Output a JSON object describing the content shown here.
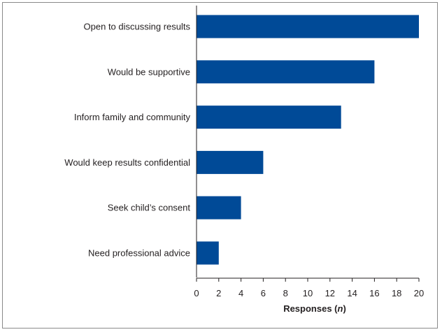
{
  "colors": {
    "bar": "#004a97",
    "axis": "#231f20"
  },
  "chart_data": {
    "type": "bar",
    "orientation": "horizontal",
    "categories": [
      "Open to discussing results",
      "Would be supportive",
      "Inform family and community",
      "Would keep results confidential",
      "Seek child’s consent",
      "Need professional advice"
    ],
    "values": [
      20,
      16,
      13,
      6,
      4,
      2
    ],
    "title": "",
    "xlabel": "Responses (n)",
    "xlabel_main": "Responses (",
    "xlabel_italic": "n",
    "xlabel_close": ")",
    "ylabel": "",
    "xlim": [
      0,
      20
    ],
    "xticks": [
      0,
      2,
      4,
      6,
      8,
      10,
      12,
      14,
      16,
      18,
      20
    ],
    "grid": false,
    "legend": "none"
  }
}
